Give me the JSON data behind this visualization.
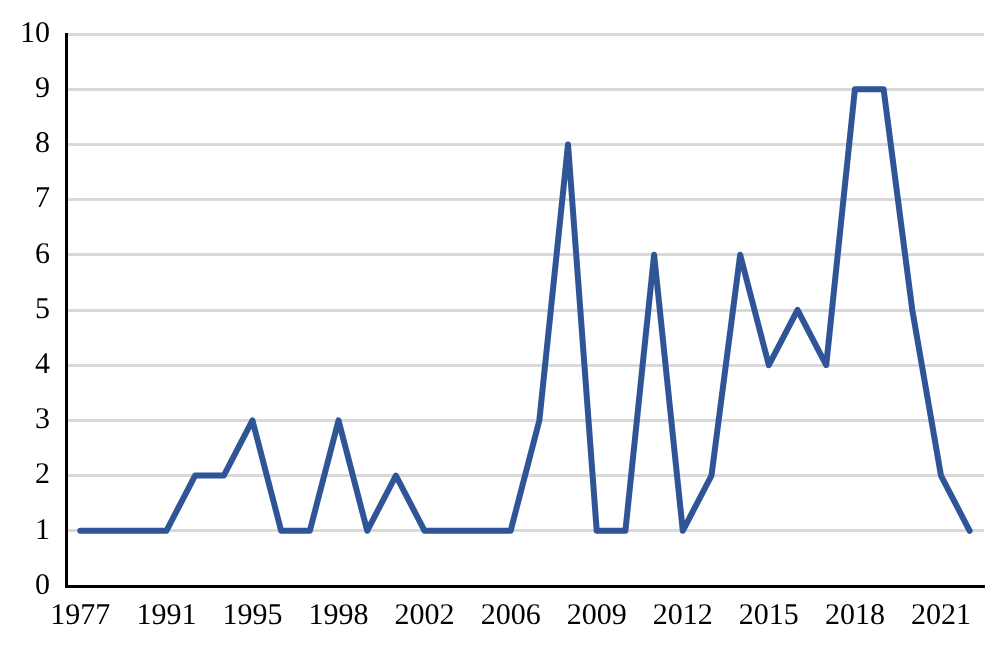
{
  "chart_data": {
    "type": "line",
    "categories": [
      "1977",
      null,
      null,
      "1991",
      null,
      null,
      "1995",
      null,
      null,
      "1998",
      null,
      null,
      "2002",
      null,
      null,
      "2006",
      null,
      null,
      "2009",
      null,
      null,
      "2012",
      null,
      null,
      "2015",
      null,
      null,
      "2018",
      null,
      null,
      "2021",
      null
    ],
    "series": [
      {
        "color": "#2f5597",
        "values": [
          1,
          1,
          1,
          1,
          2,
          2,
          3,
          1,
          1,
          3,
          1,
          2,
          1,
          1,
          1,
          1,
          3,
          8,
          1,
          1,
          6,
          1,
          2,
          6,
          4,
          5,
          4,
          9,
          9,
          5,
          2,
          1
        ]
      }
    ],
    "ylim": [
      0,
      10
    ],
    "yticks": [
      0,
      1,
      2,
      3,
      4,
      5,
      6,
      7,
      8,
      9,
      10
    ],
    "grid": "y",
    "legend": false,
    "marker": "none",
    "line_style": "solid"
  }
}
